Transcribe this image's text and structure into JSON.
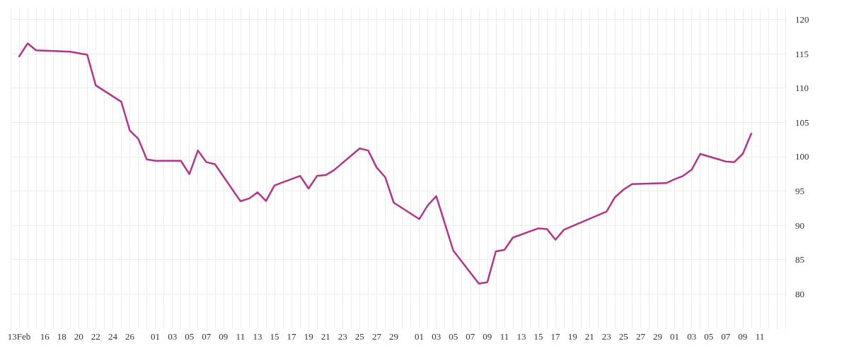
{
  "chart_data": {
    "type": "line",
    "x": [
      "--02-13",
      "--02-14",
      "--02-15",
      "--02-19",
      "--02-21",
      "--02-22",
      "--02-25",
      "--02-26",
      "--02-27",
      "--02-28",
      "--03-01",
      "--03-04",
      "--03-05",
      "--03-06",
      "--03-07",
      "--03-08",
      "--03-11",
      "--03-12",
      "--03-13",
      "--03-14",
      "--03-15",
      "--03-18",
      "--03-19",
      "--03-20",
      "--03-21",
      "--03-22",
      "--03-25",
      "--03-26",
      "--03-27",
      "--03-28",
      "--03-29",
      "--04-01",
      "--04-02",
      "--04-03",
      "--04-05",
      "--04-08",
      "--04-09",
      "--04-10",
      "--04-11",
      "--04-12",
      "--04-15",
      "--04-16",
      "--04-17",
      "--04-18",
      "--04-23",
      "--04-24",
      "--04-25",
      "--04-26",
      "--04-30",
      "--05-01",
      "--05-02",
      "--05-03",
      "--05-04",
      "--05-07",
      "--05-08",
      "--05-09",
      "--05-10"
    ],
    "series": [
      {
        "color": "#b5338a",
        "values": [
          114.6,
          116.5,
          115.5,
          115.3,
          114.85,
          110.4,
          108.0,
          103.8,
          102.6,
          99.6,
          99.4,
          99.4,
          97.45,
          100.9,
          99.2,
          98.9,
          93.5,
          93.9,
          94.8,
          93.55,
          95.8,
          97.2,
          95.35,
          97.2,
          97.3,
          98.05,
          101.2,
          100.9,
          98.4,
          97.0,
          93.3,
          90.9,
          92.9,
          94.25,
          86.3,
          81.5,
          81.7,
          86.2,
          86.4,
          88.2,
          89.55,
          89.45,
          87.9,
          89.35,
          92.0,
          94.1,
          95.2,
          96.0,
          96.15,
          96.7,
          97.2,
          98.1,
          100.4,
          99.3,
          99.2,
          100.4,
          103.35
        ]
      }
    ],
    "xlim": [
      "--02-12",
      "--05-14"
    ],
    "xticks": [
      {
        "value": "--02-12",
        "label": null
      },
      {
        "value": "--02-13",
        "label": "13Feb"
      },
      {
        "value": "--02-14",
        "label": null
      },
      {
        "value": "--02-15",
        "label": null
      },
      {
        "value": "--02-16",
        "label": "16"
      },
      {
        "value": "--02-17",
        "label": null
      },
      {
        "value": "--02-18",
        "label": "18"
      },
      {
        "value": "--02-19",
        "label": null
      },
      {
        "value": "--02-20",
        "label": "20"
      },
      {
        "value": "--02-21",
        "label": null
      },
      {
        "value": "--02-22",
        "label": "22"
      },
      {
        "value": "--02-23",
        "label": null
      },
      {
        "value": "--02-24",
        "label": "24"
      },
      {
        "value": "--02-25",
        "label": null
      },
      {
        "value": "--02-26",
        "label": "26"
      },
      {
        "value": "--02-27",
        "label": null
      },
      {
        "value": "--02-28",
        "label": null
      },
      {
        "value": "--03-01",
        "label": "01"
      },
      {
        "value": "--03-02",
        "label": null
      },
      {
        "value": "--03-03",
        "label": "03"
      },
      {
        "value": "--03-04",
        "label": null
      },
      {
        "value": "--03-05",
        "label": "05"
      },
      {
        "value": "--03-06",
        "label": null
      },
      {
        "value": "--03-07",
        "label": "07"
      },
      {
        "value": "--03-08",
        "label": null
      },
      {
        "value": "--03-09",
        "label": "09"
      },
      {
        "value": "--03-10",
        "label": null
      },
      {
        "value": "--03-11",
        "label": "11"
      },
      {
        "value": "--03-12",
        "label": null
      },
      {
        "value": "--03-13",
        "label": "13"
      },
      {
        "value": "--03-14",
        "label": null
      },
      {
        "value": "--03-15",
        "label": "15"
      },
      {
        "value": "--03-16",
        "label": null
      },
      {
        "value": "--03-17",
        "label": "17"
      },
      {
        "value": "--03-18",
        "label": null
      },
      {
        "value": "--03-19",
        "label": "19"
      },
      {
        "value": "--03-20",
        "label": null
      },
      {
        "value": "--03-21",
        "label": "21"
      },
      {
        "value": "--03-22",
        "label": null
      },
      {
        "value": "--03-23",
        "label": "23"
      },
      {
        "value": "--03-24",
        "label": null
      },
      {
        "value": "--03-25",
        "label": "25"
      },
      {
        "value": "--03-26",
        "label": null
      },
      {
        "value": "--03-27",
        "label": "27"
      },
      {
        "value": "--03-28",
        "label": null
      },
      {
        "value": "--03-29",
        "label": "29"
      },
      {
        "value": "--03-30",
        "label": null
      },
      {
        "value": "--03-31",
        "label": null
      },
      {
        "value": "--04-01",
        "label": "01"
      },
      {
        "value": "--04-02",
        "label": null
      },
      {
        "value": "--04-03",
        "label": "03"
      },
      {
        "value": "--04-04",
        "label": null
      },
      {
        "value": "--04-05",
        "label": "05"
      },
      {
        "value": "--04-06",
        "label": null
      },
      {
        "value": "--04-07",
        "label": "07"
      },
      {
        "value": "--04-08",
        "label": null
      },
      {
        "value": "--04-09",
        "label": "09"
      },
      {
        "value": "--04-10",
        "label": null
      },
      {
        "value": "--04-11",
        "label": "11"
      },
      {
        "value": "--04-12",
        "label": null
      },
      {
        "value": "--04-13",
        "label": "13"
      },
      {
        "value": "--04-14",
        "label": null
      },
      {
        "value": "--04-15",
        "label": "15"
      },
      {
        "value": "--04-16",
        "label": null
      },
      {
        "value": "--04-17",
        "label": "17"
      },
      {
        "value": "--04-18",
        "label": null
      },
      {
        "value": "--04-19",
        "label": "19"
      },
      {
        "value": "--04-20",
        "label": null
      },
      {
        "value": "--04-21",
        "label": "21"
      },
      {
        "value": "--04-22",
        "label": null
      },
      {
        "value": "--04-23",
        "label": "23"
      },
      {
        "value": "--04-24",
        "label": null
      },
      {
        "value": "--04-25",
        "label": "25"
      },
      {
        "value": "--04-26",
        "label": null
      },
      {
        "value": "--04-27",
        "label": "27"
      },
      {
        "value": "--04-28",
        "label": null
      },
      {
        "value": "--04-29",
        "label": "29"
      },
      {
        "value": "--04-30",
        "label": null
      },
      {
        "value": "--05-01",
        "label": "01"
      },
      {
        "value": "--05-02",
        "label": null
      },
      {
        "value": "--05-03",
        "label": "03"
      },
      {
        "value": "--05-04",
        "label": null
      },
      {
        "value": "--05-05",
        "label": "05"
      },
      {
        "value": "--05-06",
        "label": null
      },
      {
        "value": "--05-07",
        "label": "07"
      },
      {
        "value": "--05-08",
        "label": null
      },
      {
        "value": "--05-09",
        "label": "09"
      },
      {
        "value": "--05-10",
        "label": null
      },
      {
        "value": "--05-11",
        "label": "11"
      },
      {
        "value": "--05-12",
        "label": null
      },
      {
        "value": "--05-13",
        "label": null
      },
      {
        "value": "--05-14",
        "label": null
      }
    ],
    "ylim": [
      75.7,
      121.6
    ],
    "yticks": [
      80,
      85,
      90,
      95,
      100,
      105,
      110,
      115,
      120
    ],
    "grid": true,
    "marker": "none",
    "line_style": "solid"
  }
}
